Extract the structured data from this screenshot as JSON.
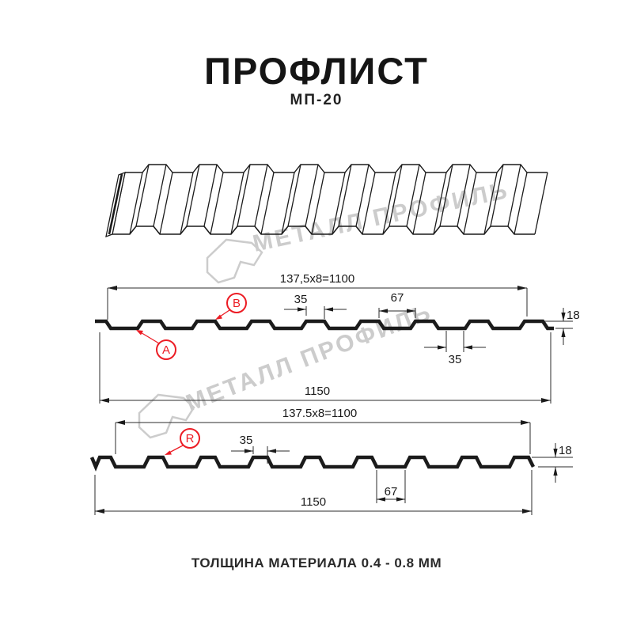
{
  "page": {
    "title": "ПРОФЛИСТ",
    "subtitle": "МП-20",
    "footer": "ТОЛЩИНА МАТЕРИАЛА 0.4 - 0.8 ММ"
  },
  "watermark": {
    "text": "МЕТАЛЛ ПРОФИЛЬ"
  },
  "colors": {
    "accent_red": "#ec1c24",
    "line_dark": "#1b1b1b",
    "dim_line": "#2b2b2b",
    "watermark_gray": "#cccccc"
  },
  "drawing_top": {
    "type": "profile-cross-section",
    "pitch_formula": "137,5x8=1100",
    "overall_width": "1150",
    "crest_width": "35",
    "valley_width": "67",
    "profile_height": "18",
    "underside_width": "35",
    "marker_a": "A",
    "marker_b": "B",
    "ribs": 8
  },
  "drawing_bottom": {
    "type": "profile-cross-section",
    "pitch_formula": "137.5x8=1100",
    "overall_width": "1150",
    "crest_width": "35",
    "valley_width": "67",
    "profile_height": "18",
    "marker_r": "R",
    "ribs": 8
  }
}
